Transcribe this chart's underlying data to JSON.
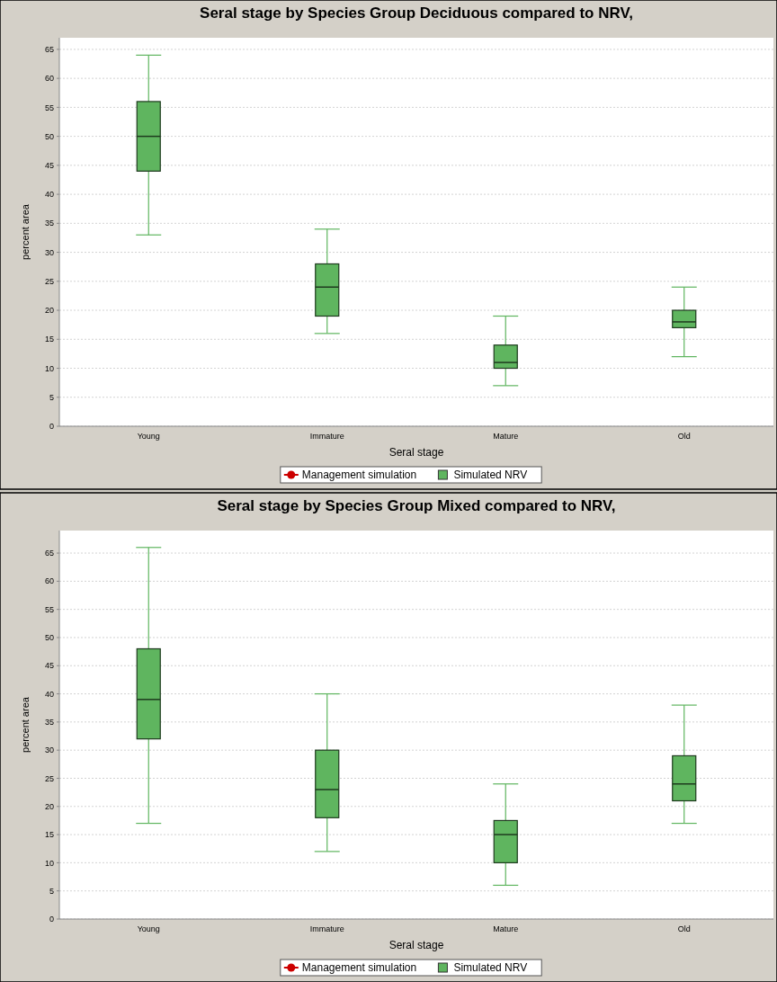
{
  "chart_data": [
    {
      "type": "box",
      "title": "Seral stage by Species Group Deciduous compared to NRV,",
      "xlabel": "Seral stage",
      "ylabel": "percent area",
      "categories": [
        "Young",
        "Immature",
        "Mature",
        "Old"
      ],
      "ylim": [
        0,
        67
      ],
      "yticks": [
        0,
        5,
        10,
        15,
        20,
        25,
        30,
        35,
        40,
        45,
        50,
        55,
        60,
        65
      ],
      "grid": "y",
      "legend": "bottom",
      "series": [
        {
          "name": "Management simulation",
          "type": "line",
          "marker": "circle",
          "color": "#cc0000",
          "values": [
            null,
            null,
            null,
            null
          ]
        },
        {
          "name": "Simulated NRV",
          "color": "#5fb55f",
          "boxes": [
            {
              "low": 33,
              "q1": 44,
              "median": 50,
              "q3": 56,
              "high": 64
            },
            {
              "low": 16,
              "q1": 19,
              "median": 24,
              "q3": 28,
              "high": 34
            },
            {
              "low": 7,
              "q1": 10,
              "median": 11,
              "q3": 14,
              "high": 19
            },
            {
              "low": 12,
              "q1": 17,
              "median": 18,
              "q3": 20,
              "high": 24
            }
          ]
        }
      ]
    },
    {
      "type": "box",
      "title": "Seral stage by Species Group Mixed compared to NRV,",
      "xlabel": "Seral stage",
      "ylabel": "percent area",
      "categories": [
        "Young",
        "Immature",
        "Mature",
        "Old"
      ],
      "ylim": [
        0,
        69
      ],
      "yticks": [
        0,
        5,
        10,
        15,
        20,
        25,
        30,
        35,
        40,
        45,
        50,
        55,
        60,
        65
      ],
      "grid": "y",
      "legend": "bottom",
      "series": [
        {
          "name": "Management simulation",
          "type": "line",
          "marker": "circle",
          "color": "#cc0000",
          "values": [
            null,
            null,
            null,
            null
          ]
        },
        {
          "name": "Simulated NRV",
          "color": "#5fb55f",
          "boxes": [
            {
              "low": 17,
              "q1": 32,
              "median": 39,
              "q3": 48,
              "high": 66
            },
            {
              "low": 12,
              "q1": 18,
              "median": 23,
              "q3": 30,
              "high": 40
            },
            {
              "low": 6,
              "q1": 10,
              "median": 15,
              "q3": 17.5,
              "high": 24
            },
            {
              "low": 17,
              "q1": 21,
              "median": 24,
              "q3": 29,
              "high": 38
            }
          ]
        }
      ]
    }
  ]
}
